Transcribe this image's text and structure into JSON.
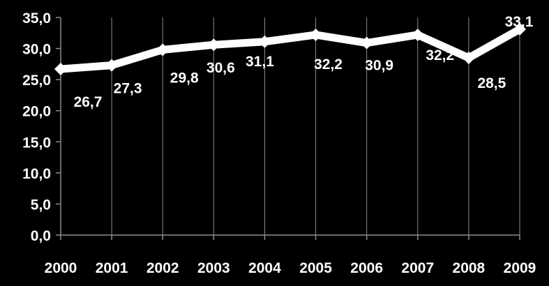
{
  "chart_data": {
    "type": "line",
    "categories": [
      "2000",
      "2001",
      "2002",
      "2003",
      "2004",
      "2005",
      "2006",
      "2007",
      "2008",
      "2009"
    ],
    "series": [
      {
        "values": [
          26.7,
          27.3,
          29.8,
          30.6,
          31.1,
          32.2,
          30.9,
          32.2,
          28.5,
          33.1
        ],
        "labels": [
          "26,7",
          "27,3",
          "29,8",
          "30,6",
          "31,1",
          "32,2",
          "30,9",
          "32,2",
          "28,5",
          "33,1"
        ]
      }
    ],
    "y_ticks": [
      "0,0",
      "5,0",
      "10,0",
      "15,0",
      "20,0",
      "25,0",
      "30,0",
      "35,0"
    ],
    "ylim": [
      0,
      35
    ],
    "grid": "vertical",
    "title": "",
    "xlabel": "",
    "ylabel": ""
  },
  "colors": {
    "background": "#000000",
    "line": "#ffffff",
    "grid": "#8c8c8c",
    "text": "#ffffff"
  }
}
